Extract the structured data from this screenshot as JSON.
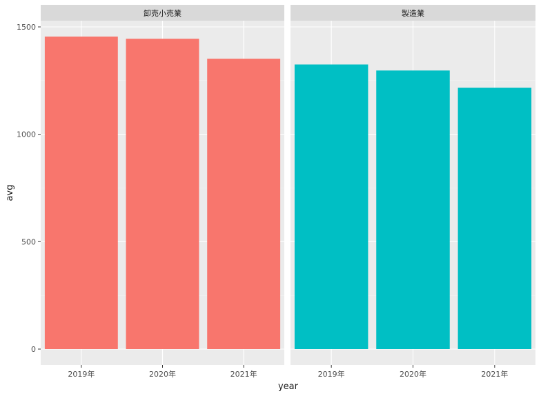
{
  "chart_data": {
    "type": "bar",
    "xlabel": "year",
    "ylabel": "avg",
    "ylim": [
      0,
      1520
    ],
    "yticks": [
      0,
      500,
      1000,
      1500
    ],
    "grid": true,
    "legend": "none",
    "categories": [
      "2019年",
      "2020年",
      "2021年"
    ],
    "facets": [
      {
        "label": "卸売小売業",
        "color": "#F8766D",
        "values": [
          1455,
          1445,
          1352
        ]
      },
      {
        "label": "製造業",
        "color": "#00BFC4",
        "values": [
          1325,
          1297,
          1217
        ]
      }
    ]
  }
}
